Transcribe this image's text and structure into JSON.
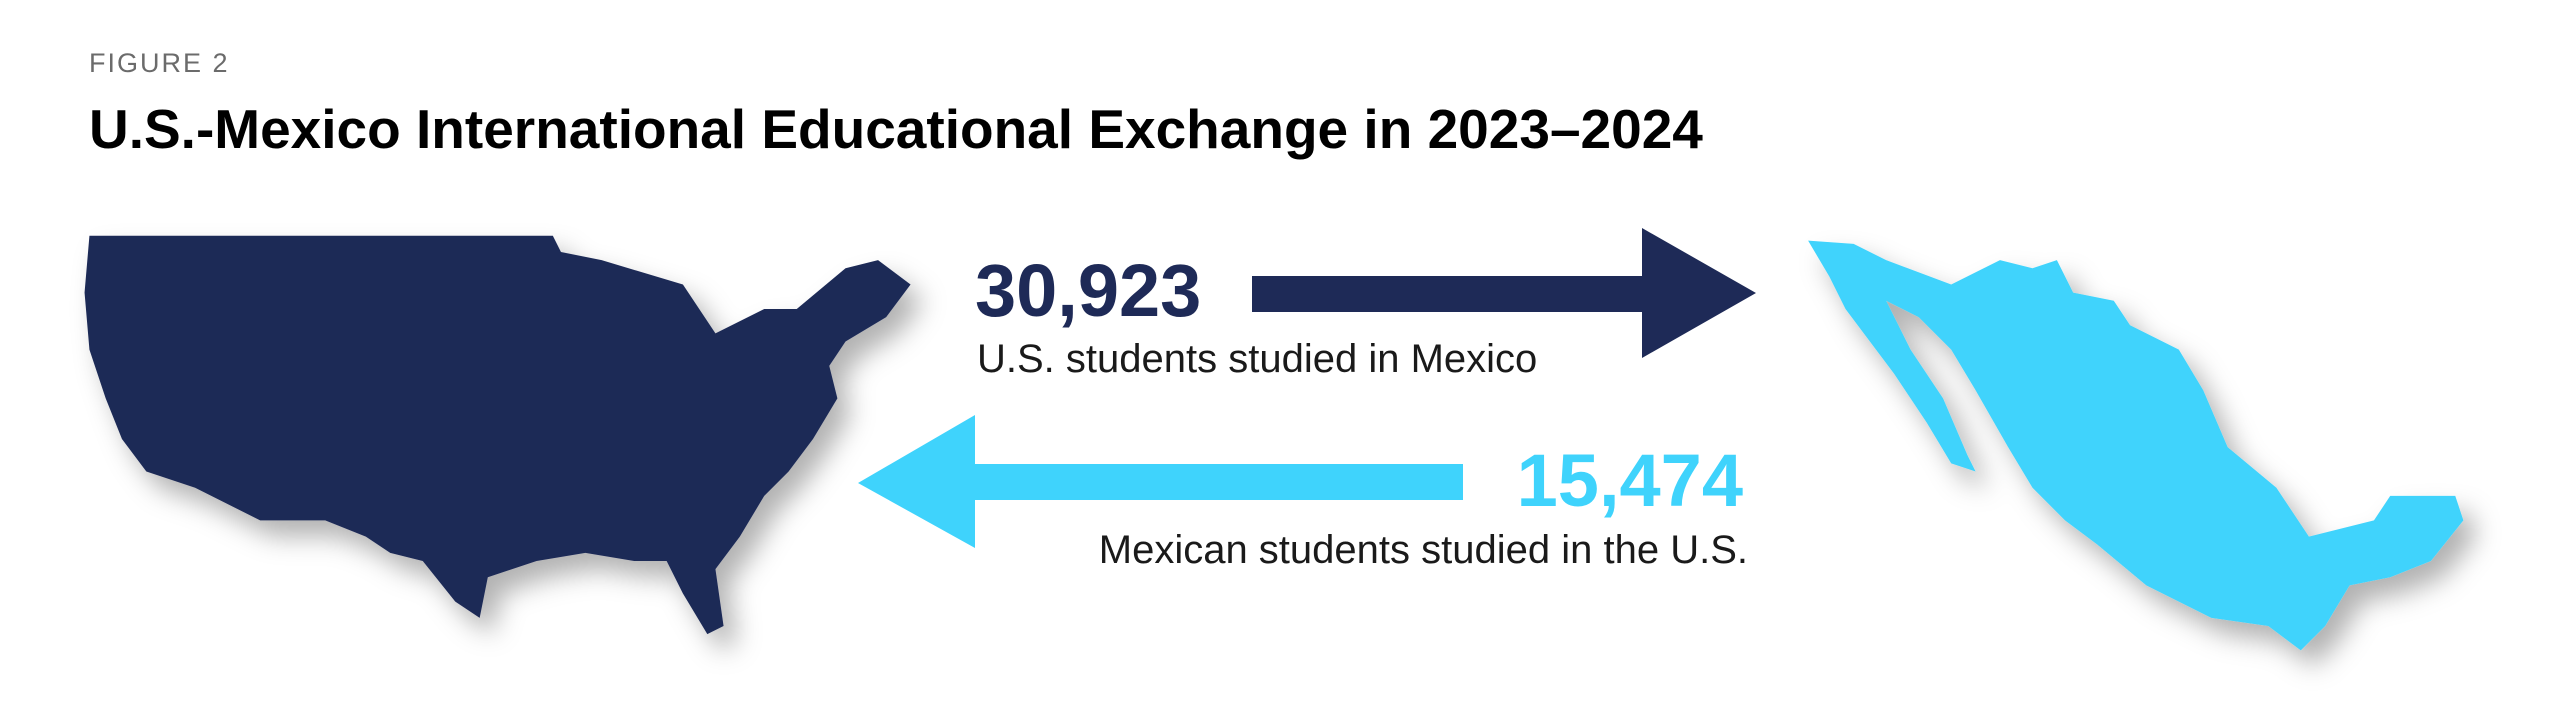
{
  "figure_label": "FIGURE 2",
  "title": "U.S.-Mexico International Educational Exchange in 2023–2024",
  "flows": [
    {
      "value": "30,923",
      "label": "U.S. students studied in Mexico"
    },
    {
      "value": "15,474",
      "label": "Mexican students studied in the U.S."
    }
  ]
}
